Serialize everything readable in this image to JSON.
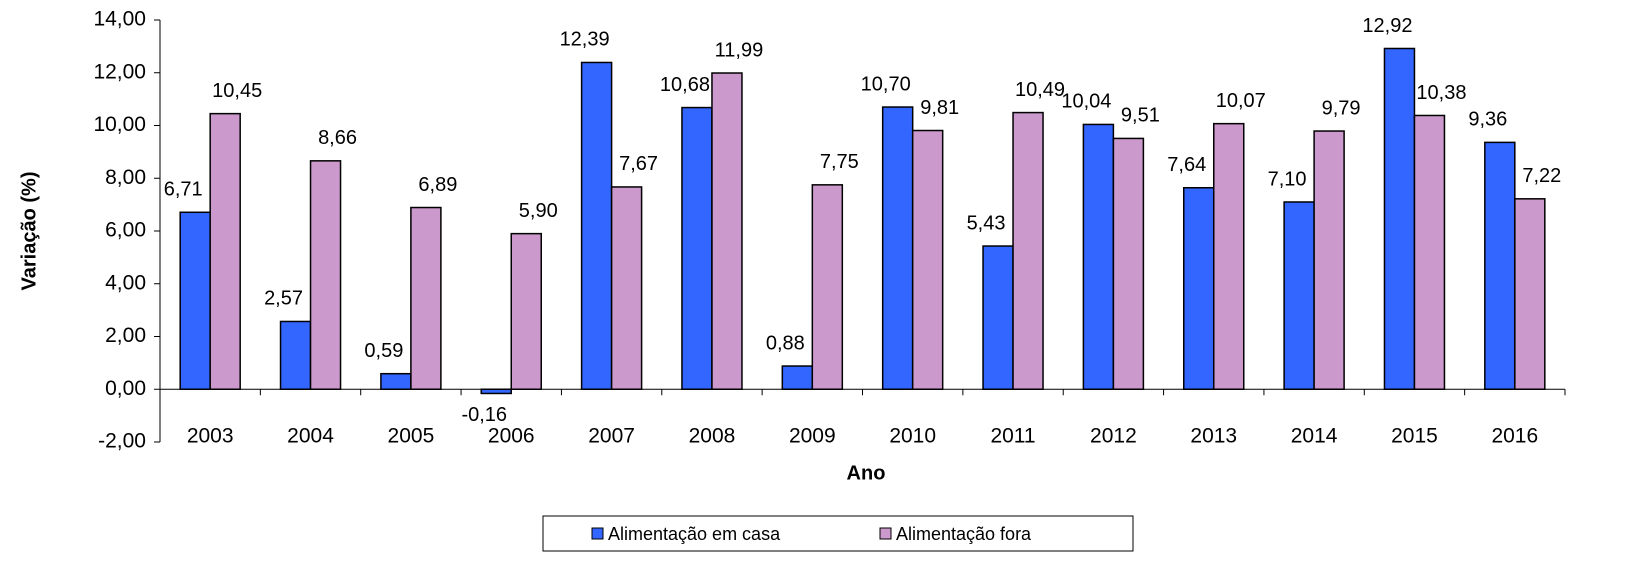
{
  "chart_data": {
    "type": "bar",
    "x_label": "Ano",
    "y_label": "Variação (%)",
    "categories": [
      "2003",
      "2004",
      "2005",
      "2006",
      "2007",
      "2008",
      "2009",
      "2010",
      "2011",
      "2012",
      "2013",
      "2014",
      "2015",
      "2016"
    ],
    "series": [
      {
        "name": "Alimentação em casa",
        "color": "#3366ff",
        "values": [
          6.71,
          2.57,
          0.59,
          -0.16,
          12.39,
          10.68,
          0.88,
          10.7,
          5.43,
          10.04,
          7.64,
          7.1,
          12.92,
          9.36
        ],
        "value_labels": [
          "6,71",
          "2,57",
          "0,59",
          "-0,16",
          "12,39",
          "10,68",
          "0,88",
          "10,70",
          "5,43",
          "10,04",
          "7,64",
          "7,10",
          "12,92",
          "9,36"
        ]
      },
      {
        "name": "Alimentação fora",
        "color": "#cc99cc",
        "values": [
          10.45,
          8.66,
          6.89,
          5.9,
          7.67,
          11.99,
          7.75,
          9.81,
          10.49,
          9.51,
          10.07,
          9.79,
          10.38,
          7.22
        ],
        "value_labels": [
          "10,45",
          "8,66",
          "6,89",
          "5,90",
          "7,67",
          "11,99",
          "7,75",
          "9,81",
          "10,49",
          "9,51",
          "10,07",
          "9,79",
          "10,38",
          "7,22"
        ]
      }
    ],
    "ylim": [
      -2,
      14
    ],
    "yticks": [
      {
        "value": -2,
        "label": "-2,00"
      },
      {
        "value": 0,
        "label": "0,00"
      },
      {
        "value": 2,
        "label": "2,00"
      },
      {
        "value": 4,
        "label": "4,00"
      },
      {
        "value": 6,
        "label": "6,00"
      },
      {
        "value": 8,
        "label": "8,00"
      },
      {
        "value": 10,
        "label": "10,00"
      },
      {
        "value": 12,
        "label": "12,00"
      },
      {
        "value": 14,
        "label": "14,00"
      }
    ],
    "grid": false,
    "legend": "bottom"
  }
}
